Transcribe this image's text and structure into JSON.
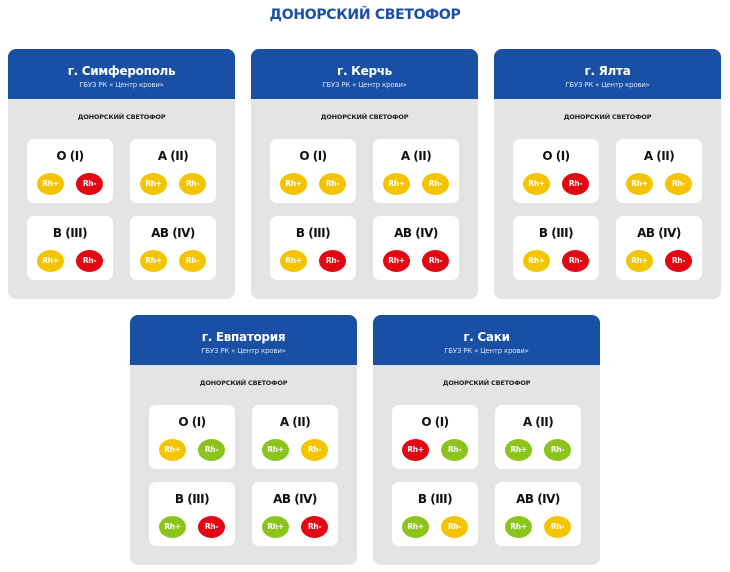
{
  "page_title": "ДОНОРСКИЙ СВЕТОФОР",
  "colors": {
    "brand_blue": "#1a4fa6",
    "yellow": "#f5c400",
    "red": "#e30613",
    "green": "#8ac41d"
  },
  "cities": [
    {
      "city": "г. Симферополь",
      "org": "ГБУЗ РК « Центр крови»",
      "subtitle": "ДОНОРСКИЙ СВЕТОФОР",
      "groups": [
        {
          "name": "O (I)",
          "rh_pos": {
            "label": "Rh+",
            "status": "yellow"
          },
          "rh_neg": {
            "label": "Rh-",
            "status": "red"
          }
        },
        {
          "name": "A (II)",
          "rh_pos": {
            "label": "Rh+",
            "status": "yellow"
          },
          "rh_neg": {
            "label": "Rh-",
            "status": "yellow"
          }
        },
        {
          "name": "B (III)",
          "rh_pos": {
            "label": "Rh+",
            "status": "yellow"
          },
          "rh_neg": {
            "label": "Rh-",
            "status": "red"
          }
        },
        {
          "name": "AB (IV)",
          "rh_pos": {
            "label": "Rh+",
            "status": "yellow"
          },
          "rh_neg": {
            "label": "Rh-",
            "status": "yellow"
          }
        }
      ]
    },
    {
      "city": "г. Керчь",
      "org": "ГБУЗ РК « Центр крови»",
      "subtitle": "ДОНОРСКИЙ СВЕТОФОР",
      "groups": [
        {
          "name": "O (I)",
          "rh_pos": {
            "label": "Rh+",
            "status": "yellow"
          },
          "rh_neg": {
            "label": "Rh-",
            "status": "yellow"
          }
        },
        {
          "name": "A (II)",
          "rh_pos": {
            "label": "Rh+",
            "status": "yellow"
          },
          "rh_neg": {
            "label": "Rh-",
            "status": "yellow"
          }
        },
        {
          "name": "B (III)",
          "rh_pos": {
            "label": "Rh+",
            "status": "yellow"
          },
          "rh_neg": {
            "label": "Rh-",
            "status": "red"
          }
        },
        {
          "name": "AB (IV)",
          "rh_pos": {
            "label": "Rh+",
            "status": "red"
          },
          "rh_neg": {
            "label": "Rh-",
            "status": "red"
          }
        }
      ]
    },
    {
      "city": "г. Ялта",
      "org": "ГБУЗ РК « Центр крови»",
      "subtitle": "ДОНОРСКИЙ СВЕТОФОР",
      "groups": [
        {
          "name": "O (I)",
          "rh_pos": {
            "label": "Rh+",
            "status": "yellow"
          },
          "rh_neg": {
            "label": "Rh-",
            "status": "red"
          }
        },
        {
          "name": "A (II)",
          "rh_pos": {
            "label": "Rh+",
            "status": "yellow"
          },
          "rh_neg": {
            "label": "Rh-",
            "status": "yellow"
          }
        },
        {
          "name": "B (III)",
          "rh_pos": {
            "label": "Rh+",
            "status": "yellow"
          },
          "rh_neg": {
            "label": "Rh-",
            "status": "red"
          }
        },
        {
          "name": "AB (IV)",
          "rh_pos": {
            "label": "Rh+",
            "status": "yellow"
          },
          "rh_neg": {
            "label": "Rh-",
            "status": "red"
          }
        }
      ]
    },
    {
      "city": "г. Евпатория",
      "org": "ГБУЗ РК « Центр крови»",
      "subtitle": "ДОНОРСКИЙ СВЕТОФОР",
      "groups": [
        {
          "name": "O (I)",
          "rh_pos": {
            "label": "Rh+",
            "status": "yellow"
          },
          "rh_neg": {
            "label": "Rh-",
            "status": "green"
          }
        },
        {
          "name": "A (II)",
          "rh_pos": {
            "label": "Rh+",
            "status": "green"
          },
          "rh_neg": {
            "label": "Rh-",
            "status": "yellow"
          }
        },
        {
          "name": "B (III)",
          "rh_pos": {
            "label": "Rh+",
            "status": "green"
          },
          "rh_neg": {
            "label": "Rh-",
            "status": "red"
          }
        },
        {
          "name": "AB (IV)",
          "rh_pos": {
            "label": "Rh+",
            "status": "green"
          },
          "rh_neg": {
            "label": "Rh-",
            "status": "red"
          }
        }
      ]
    },
    {
      "city": "г. Саки",
      "org": "ГБУЗ РК « Центр крови»",
      "subtitle": "ДОНОРСКИЙ СВЕТОФОР",
      "groups": [
        {
          "name": "O (I)",
          "rh_pos": {
            "label": "Rh+",
            "status": "red"
          },
          "rh_neg": {
            "label": "Rh-",
            "status": "green"
          }
        },
        {
          "name": "A (II)",
          "rh_pos": {
            "label": "Rh+",
            "status": "green"
          },
          "rh_neg": {
            "label": "Rh-",
            "status": "green"
          }
        },
        {
          "name": "B (III)",
          "rh_pos": {
            "label": "Rh+",
            "status": "green"
          },
          "rh_neg": {
            "label": "Rh-",
            "status": "yellow"
          }
        },
        {
          "name": "AB (IV)",
          "rh_pos": {
            "label": "Rh+",
            "status": "green"
          },
          "rh_neg": {
            "label": "Rh-",
            "status": "yellow"
          }
        }
      ]
    }
  ]
}
